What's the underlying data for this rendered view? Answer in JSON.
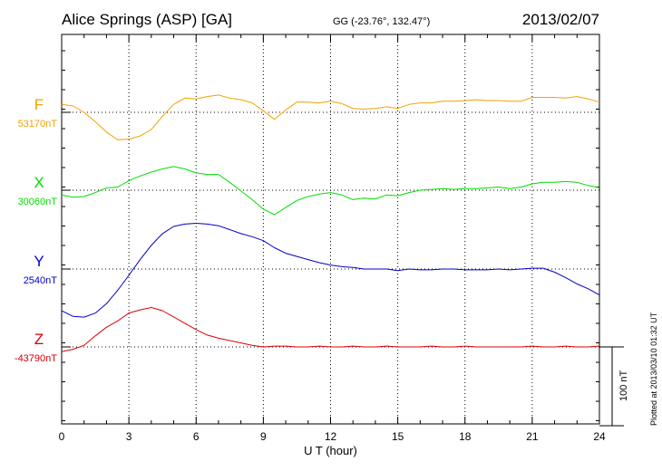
{
  "header": {
    "station": "Alice Springs (ASP)  [GA]",
    "coordinates": "GG (-23.76°, 132.47°)",
    "date": "2013/02/07"
  },
  "scale_label": "100 nT",
  "plotted_note": "Plotted at 2013/03/10 01:32 UT",
  "chart_data": {
    "type": "line",
    "xlabel": "U T (hour)",
    "xlim": [
      0,
      24
    ],
    "xticks": [
      0,
      3,
      6,
      9,
      12,
      15,
      18,
      21,
      24
    ],
    "xtick_labels": [
      "0",
      "3",
      "6",
      "9",
      "12",
      "15",
      "18",
      "21",
      "24"
    ],
    "grid": true,
    "scale_bar_nT": 100,
    "colors": {
      "F": "#f2a200",
      "X": "#00dd00",
      "Y": "#0000cc",
      "Z": "#dd0000"
    },
    "series": [
      {
        "name": "F",
        "baseline_label": "53170nT",
        "baseline_nT": 53170,
        "x": [
          0,
          0.5,
          1,
          1.5,
          2,
          2.5,
          3,
          3.5,
          4,
          4.5,
          5,
          5.5,
          6,
          6.5,
          7,
          7.5,
          8,
          8.5,
          9,
          9.5,
          10,
          10.5,
          11,
          11.5,
          12,
          12.5,
          13,
          13.5,
          14,
          14.5,
          15,
          15.5,
          16,
          16.5,
          17,
          17.5,
          18,
          18.5,
          19,
          19.5,
          20,
          20.5,
          21,
          21.5,
          22,
          22.5,
          23,
          23.5,
          24
        ],
        "values": [
          53180,
          53178,
          53170,
          53158,
          53145,
          53135,
          53136,
          53140,
          53148,
          53165,
          53180,
          53188,
          53187,
          53190,
          53192,
          53188,
          53186,
          53182,
          53172,
          53161,
          53173,
          53183,
          53183,
          53182,
          53184,
          53181,
          53175,
          53174,
          53175,
          53177,
          53175,
          53180,
          53182,
          53182,
          53184,
          53184,
          53185,
          53186,
          53185,
          53185,
          53184,
          53184,
          53189,
          53189,
          53189,
          53188,
          53190,
          53187,
          53183
        ]
      },
      {
        "name": "X",
        "baseline_label": "30060nT",
        "baseline_nT": 30060,
        "x": [
          0,
          0.5,
          1,
          1.5,
          2,
          2.5,
          3,
          3.5,
          4,
          4.5,
          5,
          5.5,
          6,
          6.5,
          7,
          7.5,
          8,
          8.5,
          9,
          9.5,
          10,
          10.5,
          11,
          11.5,
          12,
          12.5,
          13,
          13.5,
          14,
          14.5,
          15,
          15.5,
          16,
          16.5,
          17,
          17.5,
          18,
          18.5,
          19,
          19.5,
          20,
          20.5,
          21,
          21.5,
          22,
          22.5,
          23,
          23.5,
          24
        ],
        "values": [
          30054,
          30051,
          30052,
          30057,
          30063,
          30064,
          30072,
          30078,
          30083,
          30087,
          30090,
          30087,
          30082,
          30080,
          30080,
          30070,
          30059,
          30048,
          30036,
          30029,
          30038,
          30047,
          30052,
          30055,
          30057,
          30054,
          30048,
          30050,
          30049,
          30054,
          30053,
          30057,
          30060,
          30061,
          30062,
          30061,
          30062,
          30062,
          30063,
          30064,
          30062,
          30064,
          30068,
          30070,
          30070,
          30071,
          30070,
          30066,
          30063
        ]
      },
      {
        "name": "Y",
        "baseline_label": "2540nT",
        "baseline_nT": 2540,
        "x": [
          0,
          0.5,
          1,
          1.5,
          2,
          2.5,
          3,
          3.5,
          4,
          4.5,
          5,
          5.5,
          6,
          6.5,
          7,
          7.5,
          8,
          8.5,
          9,
          9.5,
          10,
          10.5,
          11,
          11.5,
          12,
          12.5,
          13,
          13.5,
          14,
          14.5,
          15,
          15.5,
          16,
          16.5,
          17,
          17.5,
          18,
          18.5,
          19,
          19.5,
          20,
          20.5,
          21,
          21.5,
          22,
          22.5,
          23,
          23.5,
          24
        ],
        "values": [
          2487,
          2480,
          2479,
          2484,
          2496,
          2513,
          2532,
          2552,
          2570,
          2585,
          2594,
          2597,
          2598,
          2597,
          2595,
          2590,
          2585,
          2581,
          2576,
          2567,
          2560,
          2556,
          2552,
          2548,
          2545,
          2543,
          2542,
          2540,
          2540,
          2540,
          2538,
          2540,
          2539,
          2539,
          2540,
          2540,
          2539,
          2539,
          2539,
          2540,
          2539,
          2540,
          2541,
          2541,
          2536,
          2529,
          2521,
          2515,
          2507
        ]
      },
      {
        "name": "Z",
        "baseline_label": "-43790nT",
        "baseline_nT": -43790,
        "x": [
          0,
          0.5,
          1,
          1.5,
          2,
          2.5,
          3,
          3.5,
          4,
          4.5,
          5,
          5.5,
          6,
          6.5,
          7,
          7.5,
          8,
          8.5,
          9,
          9.5,
          10,
          10.5,
          11,
          11.5,
          12,
          12.5,
          13,
          13.5,
          14,
          14.5,
          15,
          15.5,
          16,
          16.5,
          17,
          17.5,
          18,
          18.5,
          19,
          19.5,
          20,
          20.5,
          21,
          21.5,
          22,
          22.5,
          23,
          23.5,
          24
        ],
        "values": [
          -43796,
          -43793,
          -43788,
          -43776,
          -43765,
          -43757,
          -43747,
          -43743,
          -43740,
          -43744,
          -43752,
          -43760,
          -43768,
          -43775,
          -43779,
          -43782,
          -43785,
          -43788,
          -43790,
          -43789,
          -43789,
          -43790,
          -43790,
          -43789,
          -43790,
          -43790,
          -43789,
          -43790,
          -43790,
          -43789,
          -43790,
          -43790,
          -43790,
          -43789,
          -43790,
          -43790,
          -43789,
          -43790,
          -43790,
          -43790,
          -43790,
          -43790,
          -43789,
          -43790,
          -43790,
          -43789,
          -43790,
          -43790,
          -43789
        ]
      }
    ]
  }
}
